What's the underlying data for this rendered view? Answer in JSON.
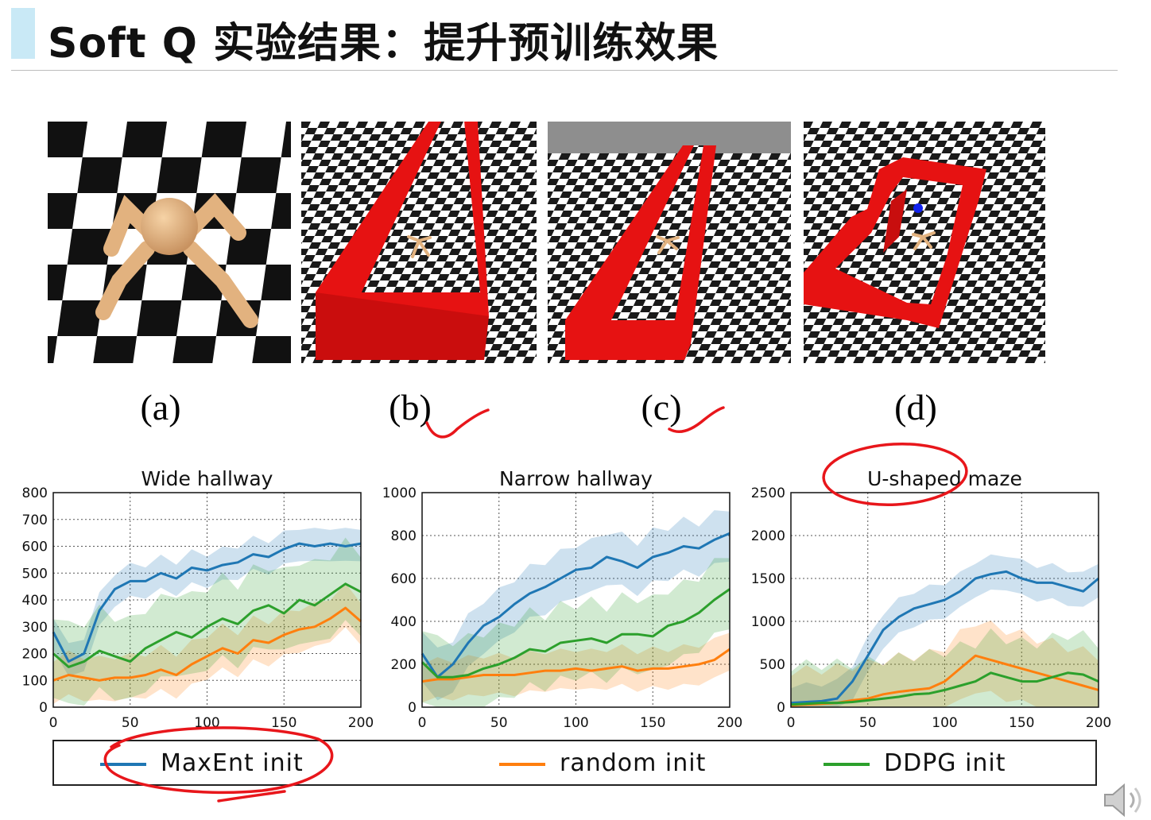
{
  "slide": {
    "title": "Soft Q 实验结果：提升预训练效果"
  },
  "panels": [
    {
      "label": "(a)",
      "scene": "ant-robot-on-checkerboard"
    },
    {
      "label": "(b)",
      "scene": "wide-hallway-maze"
    },
    {
      "label": "(c)",
      "scene": "narrow-hallway-maze"
    },
    {
      "label": "(d)",
      "scene": "u-shaped-maze"
    }
  ],
  "colors": {
    "maxent": "#1f77b4",
    "random": "#ff7f0e",
    "ddpg": "#2ca02c",
    "wall": "#e81010",
    "annotation": "#e8161b"
  },
  "legend": [
    {
      "label": "MaxEnt init",
      "series": "maxent"
    },
    {
      "label": "random init",
      "series": "random"
    },
    {
      "label": "DDPG init",
      "series": "ddpg"
    }
  ],
  "chart_data": [
    {
      "type": "line",
      "title": "Wide hallway",
      "xlim": [
        0,
        200
      ],
      "ylim": [
        0,
        800
      ],
      "xticks": [
        "0",
        "50",
        "100",
        "150",
        "200"
      ],
      "yticks": [
        "0",
        "100",
        "200",
        "300",
        "400",
        "500",
        "600",
        "700",
        "800"
      ],
      "grid": true,
      "x": [
        0,
        10,
        20,
        30,
        40,
        50,
        60,
        70,
        80,
        90,
        100,
        110,
        120,
        130,
        140,
        150,
        160,
        170,
        180,
        190,
        200
      ],
      "series": [
        {
          "name": "MaxEnt init",
          "key": "maxent",
          "values": [
            280,
            170,
            200,
            360,
            440,
            470,
            470,
            500,
            480,
            520,
            510,
            530,
            540,
            570,
            560,
            590,
            610,
            600,
            610,
            600,
            610
          ],
          "band": 60
        },
        {
          "name": "random init",
          "key": "random",
          "values": [
            100,
            120,
            110,
            100,
            110,
            110,
            120,
            140,
            120,
            160,
            190,
            220,
            200,
            250,
            240,
            270,
            290,
            300,
            330,
            370,
            320
          ],
          "band": 80
        },
        {
          "name": "DDPG init",
          "key": "ddpg",
          "values": [
            200,
            150,
            170,
            210,
            190,
            170,
            220,
            250,
            280,
            260,
            300,
            330,
            310,
            360,
            380,
            350,
            400,
            380,
            420,
            460,
            430
          ],
          "band": 150
        }
      ]
    },
    {
      "type": "line",
      "title": "Narrow hallway",
      "xlim": [
        0,
        200
      ],
      "ylim": [
        0,
        1000
      ],
      "xticks": [
        "0",
        "50",
        "100",
        "150",
        "200"
      ],
      "yticks": [
        "0",
        "200",
        "400",
        "600",
        "800",
        "1000"
      ],
      "grid": true,
      "x": [
        0,
        10,
        20,
        30,
        40,
        50,
        60,
        70,
        80,
        90,
        100,
        110,
        120,
        130,
        140,
        150,
        160,
        170,
        180,
        190,
        200
      ],
      "series": [
        {
          "name": "MaxEnt init",
          "key": "maxent",
          "values": [
            250,
            140,
            200,
            300,
            380,
            420,
            480,
            530,
            560,
            600,
            640,
            650,
            700,
            680,
            650,
            700,
            720,
            750,
            740,
            780,
            810
          ],
          "band": 120
        },
        {
          "name": "random init",
          "key": "random",
          "values": [
            120,
            130,
            130,
            140,
            150,
            150,
            150,
            160,
            170,
            170,
            180,
            170,
            180,
            190,
            170,
            180,
            180,
            190,
            200,
            220,
            270
          ],
          "band": 90
        },
        {
          "name": "DDPG init",
          "key": "ddpg",
          "values": [
            210,
            140,
            140,
            150,
            180,
            200,
            230,
            270,
            260,
            300,
            310,
            320,
            300,
            340,
            340,
            330,
            380,
            400,
            440,
            500,
            550
          ],
          "band": 170
        }
      ]
    },
    {
      "type": "line",
      "title": "U-shaped maze",
      "xlim": [
        0,
        200
      ],
      "ylim": [
        0,
        2500
      ],
      "xticks": [
        "0",
        "50",
        "100",
        "150",
        "200"
      ],
      "yticks": [
        "0",
        "500",
        "1000",
        "1500",
        "2000",
        "2500"
      ],
      "grid": true,
      "x": [
        0,
        10,
        20,
        30,
        40,
        50,
        60,
        70,
        80,
        90,
        100,
        110,
        120,
        130,
        140,
        150,
        160,
        170,
        180,
        190,
        200
      ],
      "series": [
        {
          "name": "MaxEnt init",
          "key": "maxent",
          "values": [
            50,
            60,
            70,
            100,
            300,
            600,
            900,
            1050,
            1150,
            1200,
            1250,
            1350,
            1500,
            1550,
            1580,
            1500,
            1450,
            1450,
            1400,
            1350,
            1500
          ],
          "band": 200
        },
        {
          "name": "random init",
          "key": "random",
          "values": [
            20,
            30,
            40,
            50,
            80,
            100,
            150,
            180,
            200,
            220,
            300,
            450,
            600,
            550,
            500,
            450,
            400,
            350,
            300,
            250,
            200
          ],
          "band": 400
        },
        {
          "name": "DDPG init",
          "key": "ddpg",
          "values": [
            30,
            40,
            50,
            50,
            60,
            80,
            100,
            120,
            150,
            160,
            200,
            250,
            300,
            400,
            350,
            300,
            300,
            350,
            400,
            380,
            300
          ],
          "band": 450
        }
      ]
    }
  ]
}
